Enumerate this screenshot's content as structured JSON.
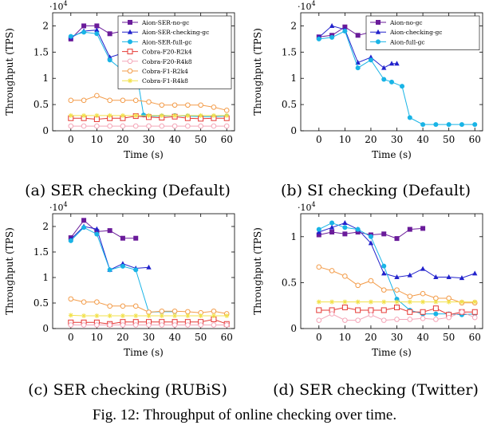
{
  "figure": {
    "caption": "Fig. 12: Throughput of online checking over time."
  },
  "chart_data": [
    {
      "type": "line",
      "subcaption": "(a) SER checking (Default)",
      "xlabel": "Time (s)",
      "ylabel": "Throughput (TPS)",
      "y_scale_label": "·10",
      "y_scale_exp": "4",
      "xlim": [
        -7,
        63
      ],
      "ylim": [
        0,
        22500
      ],
      "xticks": [
        "0",
        "10",
        "20",
        "30",
        "40",
        "50",
        "60"
      ],
      "yticks": [
        "0",
        "0.5",
        "1",
        "1.5",
        "2"
      ],
      "legend": "top-right",
      "series": [
        {
          "name": "Aion-SER-no-gc",
          "color": "#6a1b9a",
          "marker": "square",
          "x": [
            0,
            5,
            10,
            15,
            20,
            25
          ],
          "y": [
            17500,
            20000,
            20000,
            18500,
            19000,
            17800
          ]
        },
        {
          "name": "Aion-SER-checking-gc",
          "color": "#2222cc",
          "marker": "triangle",
          "x": [
            0,
            5,
            10,
            15,
            20,
            25,
            28
          ],
          "y": [
            17800,
            19000,
            19200,
            14000,
            14800,
            14500,
            14000
          ]
        },
        {
          "name": "Aion-SER-full-gc",
          "color": "#19b4e6",
          "marker": "circle",
          "x": [
            0,
            5,
            10,
            15,
            20,
            25,
            28,
            30,
            35,
            40,
            45,
            50,
            55,
            60
          ],
          "y": [
            18000,
            18800,
            18500,
            13500,
            11500,
            12000,
            3000,
            2800,
            2800,
            2900,
            2800,
            2700,
            2700,
            2800
          ]
        },
        {
          "name": "Cobra-F20-R2k4",
          "color": "#e53935",
          "marker": "square-open",
          "x": [
            0,
            5,
            10,
            15,
            20,
            25,
            30,
            35,
            40,
            45,
            50,
            55,
            60
          ],
          "y": [
            2400,
            2400,
            2200,
            2400,
            2400,
            2800,
            2600,
            2500,
            2700,
            2400,
            2300,
            2400,
            2400
          ]
        },
        {
          "name": "Cobra-F20-R4k8",
          "color": "#f4a6b8",
          "marker": "circle-open",
          "x": [
            0,
            5,
            10,
            15,
            20,
            25,
            30,
            35,
            40,
            45,
            50,
            55,
            60
          ],
          "y": [
            900,
            900,
            900,
            900,
            900,
            900,
            900,
            900,
            900,
            900,
            900,
            900,
            900
          ]
        },
        {
          "name": "Cobra-F1-R2k4",
          "color": "#f39c4a",
          "marker": "circle-open",
          "x": [
            0,
            5,
            10,
            15,
            20,
            25,
            30,
            35,
            40,
            45,
            50,
            55,
            60
          ],
          "y": [
            5800,
            5800,
            6700,
            5800,
            5800,
            5800,
            5500,
            4900,
            4900,
            4900,
            4900,
            4500,
            3900
          ]
        },
        {
          "name": "Cobra-F1-R4k8",
          "color": "#f2e14a",
          "marker": "star",
          "x": [
            0,
            5,
            10,
            15,
            20,
            25,
            30,
            35,
            40,
            45,
            50,
            55,
            60
          ],
          "y": [
            2900,
            2900,
            2900,
            2900,
            2900,
            2900,
            2900,
            2900,
            2900,
            2900,
            2900,
            2900,
            2900
          ]
        }
      ]
    },
    {
      "type": "line",
      "subcaption": "(b) SI checking (Default)",
      "xlabel": "Time (s)",
      "ylabel": "Throughput (TPS)",
      "y_scale_label": "·10",
      "y_scale_exp": "4",
      "xlim": [
        -7,
        63
      ],
      "ylim": [
        0,
        22500
      ],
      "xticks": [
        "0",
        "10",
        "20",
        "30",
        "40",
        "50",
        "60"
      ],
      "yticks": [
        "0",
        "0.5",
        "1",
        "1.5",
        "2"
      ],
      "legend": "top-right",
      "series": [
        {
          "name": "Aion-no-gc",
          "color": "#6a1b9a",
          "marker": "square",
          "x": [
            0,
            5,
            10,
            15,
            20,
            25
          ],
          "y": [
            17900,
            18200,
            19800,
            18200,
            18800,
            18500
          ]
        },
        {
          "name": "Aion-checking-gc",
          "color": "#2222cc",
          "marker": "triangle",
          "x": [
            0,
            5,
            10,
            15,
            20,
            25,
            28,
            30
          ],
          "y": [
            17800,
            20000,
            19300,
            13000,
            14000,
            12000,
            12800,
            12800
          ]
        },
        {
          "name": "Aion-full-gc",
          "color": "#19b4e6",
          "marker": "circle",
          "x": [
            0,
            5,
            10,
            15,
            20,
            25,
            28,
            32,
            35,
            40,
            45,
            50,
            55,
            60
          ],
          "y": [
            17500,
            17800,
            19000,
            12000,
            13500,
            9800,
            9300,
            8500,
            2500,
            1200,
            1200,
            1200,
            1200,
            1200
          ]
        }
      ]
    },
    {
      "type": "line",
      "subcaption": "(c) SER checking (RUBiS)",
      "xlabel": "Time (s)",
      "ylabel": "Throughput (TPS)",
      "y_scale_label": "·10",
      "y_scale_exp": "4",
      "xlim": [
        -7,
        63
      ],
      "ylim": [
        0,
        22500
      ],
      "xticks": [
        "0",
        "10",
        "20",
        "30",
        "40",
        "50",
        "60"
      ],
      "yticks": [
        "0",
        "0.5",
        "1",
        "1.5",
        "2"
      ],
      "legend": "none",
      "series": [
        {
          "name": "",
          "color": "#6a1b9a",
          "marker": "square",
          "x": [
            0,
            5,
            10,
            15,
            20,
            25
          ],
          "y": [
            17800,
            21200,
            19000,
            19200,
            17700,
            17700
          ]
        },
        {
          "name": "",
          "color": "#2222cc",
          "marker": "triangle",
          "x": [
            0,
            5,
            10,
            15,
            20,
            25,
            30
          ],
          "y": [
            17500,
            20000,
            19500,
            11500,
            12700,
            11800,
            12000
          ]
        },
        {
          "name": "",
          "color": "#19b4e6",
          "marker": "circle",
          "x": [
            0,
            5,
            10,
            15,
            20,
            25,
            30,
            35,
            40
          ],
          "y": [
            17200,
            19800,
            18500,
            11500,
            12200,
            11500,
            3200,
            3300,
            3300
          ]
        },
        {
          "name": "",
          "color": "#e53935",
          "marker": "square-open",
          "x": [
            0,
            5,
            10,
            15,
            20,
            25,
            30,
            35,
            40,
            45,
            50,
            55,
            60
          ],
          "y": [
            1200,
            1200,
            1200,
            900,
            1300,
            1300,
            1300,
            1300,
            1300,
            1300,
            1300,
            1800,
            900
          ]
        },
        {
          "name": "",
          "color": "#f4a6b8",
          "marker": "circle-open",
          "x": [
            0,
            5,
            10,
            15,
            20,
            25,
            30,
            35,
            40,
            45,
            50,
            55,
            60
          ],
          "y": [
            700,
            700,
            700,
            700,
            700,
            700,
            700,
            700,
            700,
            700,
            700,
            700,
            700
          ]
        },
        {
          "name": "",
          "color": "#f39c4a",
          "marker": "circle-open",
          "x": [
            0,
            5,
            10,
            15,
            20,
            25,
            30,
            35,
            40,
            45,
            50,
            55,
            60
          ],
          "y": [
            5800,
            5200,
            5200,
            4400,
            4400,
            4400,
            3200,
            3400,
            3400,
            3300,
            3100,
            3400,
            2900
          ]
        },
        {
          "name": "",
          "color": "#f2e14a",
          "marker": "star",
          "x": [
            0,
            5,
            10,
            15,
            20,
            25,
            30,
            35,
            40,
            45,
            50,
            55,
            60
          ],
          "y": [
            2600,
            2500,
            2500,
            2500,
            2500,
            2500,
            2500,
            2500,
            2500,
            2500,
            2500,
            2500,
            2500
          ]
        }
      ]
    },
    {
      "type": "line",
      "subcaption": "(d) SER checking (Twitter)",
      "xlabel": "Time (s)",
      "ylabel": "Throughput (TPS)",
      "y_scale_label": "·10",
      "y_scale_exp": "4",
      "xlim": [
        -7,
        63
      ],
      "ylim": [
        0,
        12500
      ],
      "xticks": [
        "0",
        "10",
        "20",
        "30",
        "40",
        "50",
        "60"
      ],
      "yticks": [
        "0",
        "0.5",
        "1"
      ],
      "legend": "none",
      "series": [
        {
          "name": "",
          "color": "#6a1b9a",
          "marker": "square",
          "x": [
            0,
            5,
            10,
            15,
            20,
            25,
            30,
            35,
            40
          ],
          "y": [
            10200,
            10500,
            10300,
            10500,
            10200,
            10300,
            9800,
            10800,
            10900
          ]
        },
        {
          "name": "",
          "color": "#2222cc",
          "marker": "triangle",
          "x": [
            0,
            5,
            10,
            15,
            20,
            25,
            30,
            35,
            40,
            45,
            50,
            55,
            60
          ],
          "y": [
            10500,
            11000,
            11500,
            10800,
            9300,
            6000,
            5600,
            5800,
            6500,
            5600,
            5600,
            5500,
            6000
          ]
        },
        {
          "name": "",
          "color": "#19b4e6",
          "marker": "circle",
          "x": [
            0,
            5,
            10,
            15,
            20,
            25,
            30,
            35,
            40,
            45,
            50,
            55,
            60
          ],
          "y": [
            10800,
            11500,
            11000,
            10800,
            10000,
            6800,
            3200,
            2000,
            1600,
            1600,
            1600,
            1500,
            1600
          ]
        },
        {
          "name": "",
          "color": "#e53935",
          "marker": "square-open",
          "x": [
            0,
            5,
            10,
            15,
            20,
            25,
            30,
            35,
            40,
            45,
            50,
            55,
            60
          ],
          "y": [
            2000,
            2000,
            2300,
            2000,
            2000,
            2000,
            2300,
            1800,
            1800,
            2200,
            1500,
            1800,
            1800
          ]
        },
        {
          "name": "",
          "color": "#f4a6b8",
          "marker": "circle-open",
          "x": [
            0,
            5,
            10,
            15,
            20,
            25,
            30,
            35,
            40,
            45,
            50,
            55,
            60
          ],
          "y": [
            900,
            1600,
            900,
            900,
            1500,
            900,
            1000,
            1000,
            1100,
            1000,
            1200,
            1800,
            1200
          ]
        },
        {
          "name": "",
          "color": "#f39c4a",
          "marker": "circle-open",
          "x": [
            0,
            5,
            10,
            15,
            20,
            25,
            30,
            35,
            40,
            45,
            50,
            55,
            60
          ],
          "y": [
            6700,
            6300,
            5700,
            4700,
            5200,
            4200,
            4200,
            3500,
            3800,
            3300,
            3300,
            2800,
            2800
          ]
        },
        {
          "name": "",
          "color": "#f2e14a",
          "marker": "star",
          "x": [
            0,
            5,
            10,
            15,
            20,
            25,
            30,
            35,
            40,
            45,
            50,
            55,
            60
          ],
          "y": [
            2900,
            2900,
            2900,
            2900,
            2900,
            2900,
            2900,
            2900,
            2900,
            2900,
            2900,
            2900,
            2900
          ]
        }
      ]
    }
  ]
}
